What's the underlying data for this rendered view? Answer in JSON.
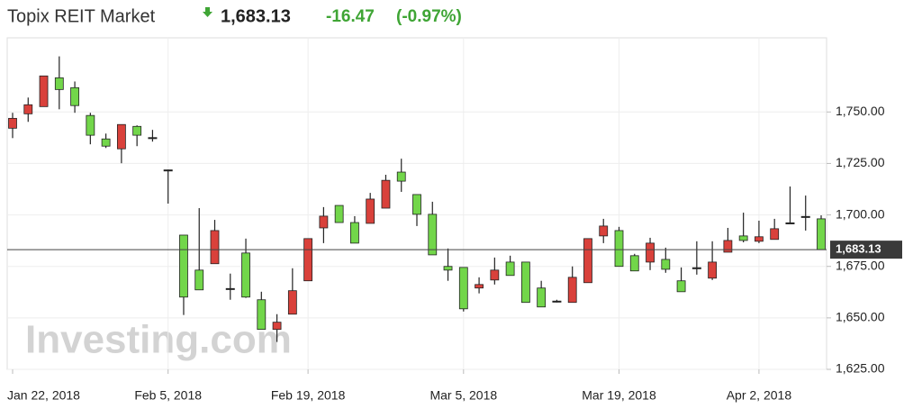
{
  "header": {
    "title": "Topix REIT Market",
    "change": "-16.47",
    "change_pct": "(-0.97%)"
  },
  "chart_data": {
    "type": "candlestick",
    "watermark": "Investing.com",
    "categories": [
      "Jan 22, 2018",
      null,
      null,
      null,
      null,
      null,
      null,
      null,
      null,
      null,
      "Feb 5, 2018",
      null,
      null,
      null,
      null,
      null,
      null,
      null,
      null,
      "Feb 19, 2018",
      null,
      null,
      null,
      null,
      null,
      null,
      null,
      null,
      null,
      "Mar 5, 2018",
      null,
      null,
      null,
      null,
      null,
      null,
      null,
      null,
      null,
      "Mar 19, 2018",
      null,
      null,
      null,
      null,
      null,
      null,
      null,
      null,
      "Apr 2, 2018",
      null,
      null,
      null,
      null
    ],
    "open": [
      1742.1,
      1749.1,
      1752.6,
      1766.6,
      1761.8,
      1748.3,
      1736.9,
      1732.1,
      1743.0,
      1737.3,
      1721.6,
      1690.2,
      1673.2,
      1676.3,
      1664.0,
      1681.5,
      1658.8,
      1644.4,
      1651.8,
      1668.0,
      1693.7,
      1704.6,
      1696.3,
      1695.9,
      1703.3,
      1720.8,
      1709.9,
      1700.3,
      1675.0,
      1674.5,
      1664.5,
      1668.4,
      1677.1,
      1677.1,
      1664.5,
      1657.9,
      1657.5,
      1667.1,
      1689.8,
      1692.4,
      1680.2,
      1677.1,
      1678.4,
      1668.0,
      1674.1,
      1669.3,
      1681.9,
      1689.8,
      1687.2,
      1688.1,
      1695.9,
      1699.0,
      1698.1
    ],
    "high": [
      1749.6,
      1757.0,
      1767.5,
      1777.0,
      1764.8,
      1749.6,
      1739.5,
      1743.9,
      1743.5,
      1741.3,
      1722.0,
      1690.2,
      1703.3,
      1697.6,
      1671.5,
      1688.5,
      1662.7,
      1651.8,
      1674.1,
      1688.5,
      1703.8,
      1704.6,
      1699.4,
      1710.7,
      1719.5,
      1727.3,
      1709.9,
      1706.4,
      1683.7,
      1674.5,
      1669.7,
      1679.3,
      1680.2,
      1677.1,
      1668.0,
      1658.8,
      1675.0,
      1688.5,
      1698.1,
      1694.2,
      1681.1,
      1688.9,
      1684.1,
      1674.5,
      1687.2,
      1687.2,
      1693.7,
      1701.1,
      1697.2,
      1698.1,
      1713.8,
      1709.4,
      1699.8
    ],
    "low": [
      1737.3,
      1745.2,
      1752.6,
      1751.3,
      1749.6,
      1734.3,
      1732.5,
      1725.1,
      1733.4,
      1735.6,
      1705.5,
      1651.4,
      1663.6,
      1676.3,
      1658.8,
      1659.7,
      1644.4,
      1638.3,
      1651.8,
      1668.0,
      1686.3,
      1696.3,
      1686.3,
      1695.9,
      1703.3,
      1711.2,
      1694.6,
      1680.6,
      1668.0,
      1653.1,
      1661.9,
      1666.2,
      1670.6,
      1657.5,
      1655.3,
      1657.5,
      1657.5,
      1667.1,
      1686.3,
      1675.0,
      1672.8,
      1673.2,
      1671.9,
      1662.7,
      1671.0,
      1668.4,
      1681.9,
      1686.7,
      1686.3,
      1688.1,
      1695.9,
      1692.4,
      1683.13
    ],
    "close": [
      1746.9,
      1753.5,
      1767.5,
      1760.9,
      1753.1,
      1738.7,
      1733.4,
      1743.9,
      1738.7,
      1737.3,
      1721.6,
      1660.1,
      1663.6,
      1692.4,
      1664.0,
      1660.1,
      1644.4,
      1647.9,
      1663.2,
      1688.5,
      1699.4,
      1696.3,
      1686.3,
      1707.7,
      1716.8,
      1716.4,
      1700.3,
      1680.6,
      1673.2,
      1654.4,
      1666.2,
      1673.2,
      1670.6,
      1657.5,
      1655.3,
      1657.9,
      1669.7,
      1688.5,
      1694.6,
      1675.0,
      1672.8,
      1686.3,
      1673.6,
      1662.7,
      1674.1,
      1677.1,
      1687.6,
      1687.6,
      1689.4,
      1693.3,
      1695.9,
      1699.0,
      1683.13
    ],
    "up_color": "#d9413b",
    "down_color": "#72d64a",
    "flat_color": "#222222",
    "last_price": {
      "value": 1683.13,
      "label": "1,683.13"
    },
    "ylim": [
      1625,
      1786
    ],
    "yticks": [
      {
        "value": 1625,
        "label": "1,625.00"
      },
      {
        "value": 1650,
        "label": "1,650.00"
      },
      {
        "value": 1675,
        "label": "1,675.00"
      },
      {
        "value": 1700,
        "label": "1,700.00"
      },
      {
        "value": 1725,
        "label": "1,725.00"
      },
      {
        "value": 1750,
        "label": "1,750.00"
      }
    ],
    "grid": true
  }
}
